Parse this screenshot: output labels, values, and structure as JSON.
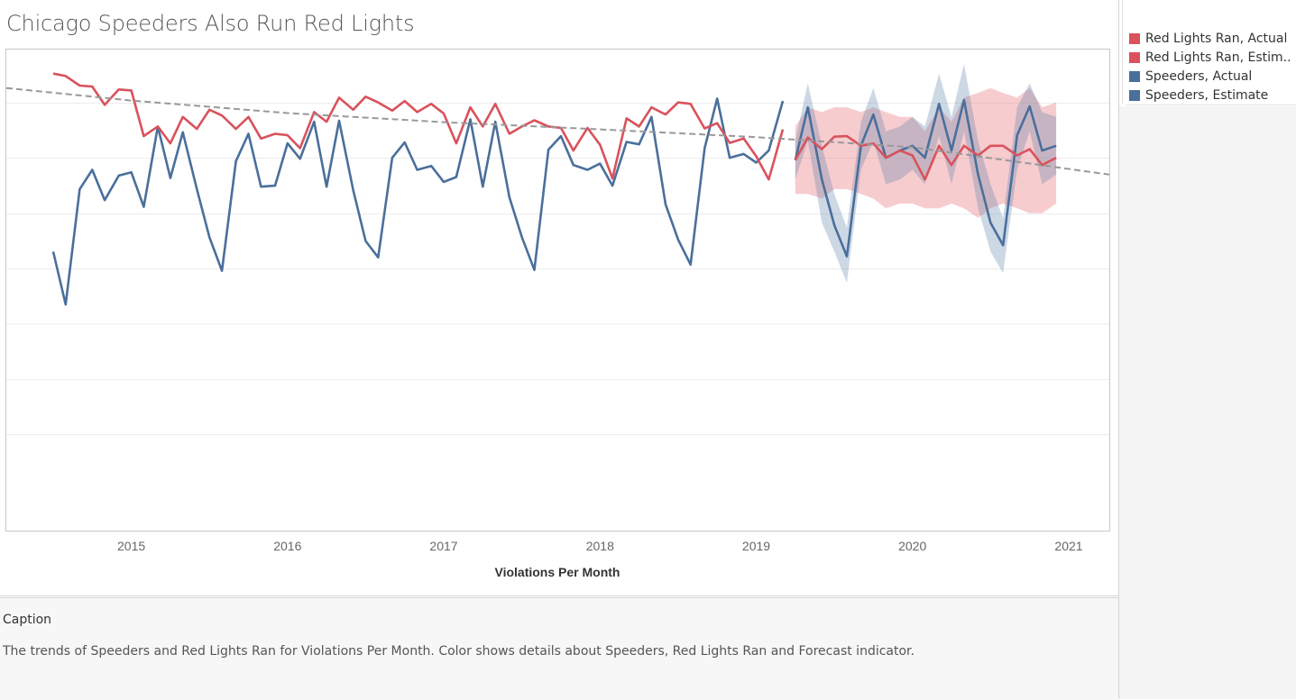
{
  "title": "Chicago Speeders Also Run Red Lights",
  "legend": [
    {
      "label": "Red Lights Ran, Actual",
      "color": "#d9525c"
    },
    {
      "label": "Red Lights Ran, Estim..",
      "color": "#d9525c"
    },
    {
      "label": "Speeders, Actual",
      "color": "#4a6f9b"
    },
    {
      "label": "Speeders, Estimate",
      "color": "#4a6f9b"
    }
  ],
  "caption": {
    "title": "Caption",
    "text": "The trends of Speeders and Red Lights Ran for Violations Per Month.  Color shows details about Speeders, Red Lights Ran and Forecast indicator."
  },
  "chart_data": {
    "type": "line",
    "title": "Chicago Speeders Also Run Red Lights",
    "xlabel": "Violations Per Month",
    "ylabel": "",
    "x_ticks": [
      "2015",
      "2016",
      "2017",
      "2018",
      "2019",
      "2020",
      "2021"
    ],
    "x_range": [
      2014.2,
      2021.26
    ],
    "y_range": [
      0,
      100
    ],
    "grid": "horizontal gridlines",
    "legend_position": "right",
    "colors": {
      "red_lights": "#d9525c",
      "speeders": "#4a6f9b",
      "trend": "#999999"
    },
    "series": [
      {
        "name": "Red Lights Ran, Actual",
        "x": [
          2014.5,
          2014.58,
          2014.67,
          2014.75,
          2014.83,
          2014.92,
          2015.0,
          2015.08,
          2015.17,
          2015.25,
          2015.33,
          2015.42,
          2015.5,
          2015.58,
          2015.67,
          2015.75,
          2015.83,
          2015.92,
          2016.0,
          2016.08,
          2016.17,
          2016.25,
          2016.33,
          2016.42,
          2016.5,
          2016.58,
          2016.67,
          2016.75,
          2016.83,
          2016.92,
          2017.0,
          2017.08,
          2017.17,
          2017.25,
          2017.33,
          2017.42,
          2017.5,
          2017.58,
          2017.67,
          2017.75,
          2017.83,
          2017.92,
          2018.0,
          2018.08,
          2018.17,
          2018.25,
          2018.33,
          2018.42,
          2018.5,
          2018.58,
          2018.67,
          2018.75,
          2018.83,
          2018.92,
          2019.0,
          2019.08,
          2019.17
        ],
        "values": [
          95,
          94.5,
          92.5,
          92.3,
          88.5,
          91.7,
          91.5,
          82,
          84,
          80.5,
          86,
          83.5,
          87.5,
          86.3,
          83.5,
          86,
          81.5,
          82.5,
          82.2,
          79.5,
          87,
          85,
          90,
          87.5,
          90.2,
          89,
          87.3,
          89.3,
          87,
          88.7,
          86.7,
          80.5,
          88,
          84,
          88.7,
          82.5,
          84,
          85.3,
          84,
          83.7,
          79,
          83.7,
          80.2,
          73.2,
          85.7,
          84,
          88,
          86.5,
          89,
          88.7,
          83.6,
          84.7,
          80.6,
          81.5,
          77.8,
          73,
          83.4
        ]
      },
      {
        "name": "Red Lights Ran, Estim..",
        "x": [
          2019.25,
          2019.33,
          2019.42,
          2019.5,
          2019.58,
          2019.67,
          2019.75,
          2019.83,
          2019.92,
          2020.0,
          2020.08,
          2020.17,
          2020.25,
          2020.33,
          2020.42,
          2020.5,
          2020.58,
          2020.67,
          2020.75,
          2020.83,
          2020.92
        ],
        "values": [
          77,
          81.7,
          79.3,
          81.9,
          82,
          80,
          80.5,
          77.5,
          79,
          78,
          73,
          80,
          76,
          80,
          78,
          80,
          80,
          78,
          79.3,
          76,
          77.5
        ],
        "band_low": [
          70,
          70,
          69,
          71,
          71,
          70,
          69,
          67,
          68,
          68,
          67,
          67,
          68,
          67,
          65,
          67,
          68,
          67,
          66,
          66,
          68
        ],
        "band_high": [
          84,
          88,
          87,
          88,
          88,
          87,
          88,
          87,
          86,
          86,
          83,
          88,
          85,
          90,
          91,
          92,
          91,
          90,
          92,
          88,
          89
        ]
      },
      {
        "name": "Speeders, Actual",
        "x": [
          2014.5,
          2014.58,
          2014.67,
          2014.75,
          2014.83,
          2014.92,
          2015.0,
          2015.08,
          2015.17,
          2015.25,
          2015.33,
          2015.42,
          2015.5,
          2015.58,
          2015.67,
          2015.75,
          2015.83,
          2015.92,
          2016.0,
          2016.08,
          2016.17,
          2016.25,
          2016.33,
          2016.42,
          2016.5,
          2016.58,
          2016.67,
          2016.75,
          2016.83,
          2016.92,
          2017.0,
          2017.08,
          2017.17,
          2017.25,
          2017.33,
          2017.42,
          2017.5,
          2017.58,
          2017.67,
          2017.75,
          2017.83,
          2017.92,
          2018.0,
          2018.08,
          2018.17,
          2018.25,
          2018.33,
          2018.42,
          2018.5,
          2018.58,
          2018.67,
          2018.75,
          2018.83,
          2018.92,
          2019.0,
          2019.08,
          2019.17
        ],
        "values": [
          58,
          47,
          71,
          75,
          68.7,
          73.8,
          74.5,
          67.3,
          84,
          73.3,
          82.8,
          71,
          61,
          54,
          76.8,
          82.5,
          71.5,
          71.7,
          80.5,
          77.3,
          85,
          71.5,
          85.2,
          70.8,
          60.2,
          56.8,
          77.5,
          80.7,
          75,
          75.8,
          72.5,
          73.5,
          85.5,
          71.5,
          85,
          69.3,
          61,
          54.2,
          79.2,
          82,
          76,
          75,
          76.3,
          71.7,
          80.8,
          80.3,
          86,
          67.8,
          60.5,
          55.3,
          79.5,
          89.8,
          77.5,
          78.3,
          76.5,
          79,
          89.3
        ]
      },
      {
        "name": "Speeders, Estimate",
        "x": [
          2019.25,
          2019.33,
          2019.42,
          2019.5,
          2019.58,
          2019.67,
          2019.75,
          2019.83,
          2019.92,
          2020.0,
          2020.08,
          2020.17,
          2020.25,
          2020.33,
          2020.42,
          2020.5,
          2020.58,
          2020.67,
          2020.75,
          2020.83,
          2020.92
        ],
        "values": [
          77,
          88,
          73,
          63.5,
          57,
          80,
          86.5,
          77.5,
          79,
          80,
          77.5,
          88.7,
          79,
          89.5,
          74,
          64,
          59.3,
          82.2,
          88.2,
          79,
          80
        ],
        "band_low": [
          73,
          81,
          64,
          58,
          51.5,
          75,
          81,
          72,
          73,
          75,
          72,
          82,
          72,
          83,
          67,
          58,
          53.5,
          75,
          83,
          72,
          74
        ],
        "band_high": [
          81,
          93,
          80,
          70,
          63,
          85,
          92,
          83,
          84,
          86,
          84,
          95,
          86,
          97,
          81,
          72,
          65,
          88,
          93,
          87,
          86
        ]
      }
    ],
    "trend": {
      "style": "dashed",
      "x": [
        2014.2,
        2015.0,
        2016.0,
        2017.0,
        2018.0,
        2019.0,
        2020.0,
        2021.26
      ],
      "values": [
        92,
        89.4,
        86.8,
        84.9,
        83.4,
        81.8,
        79.7,
        74
      ]
    }
  }
}
